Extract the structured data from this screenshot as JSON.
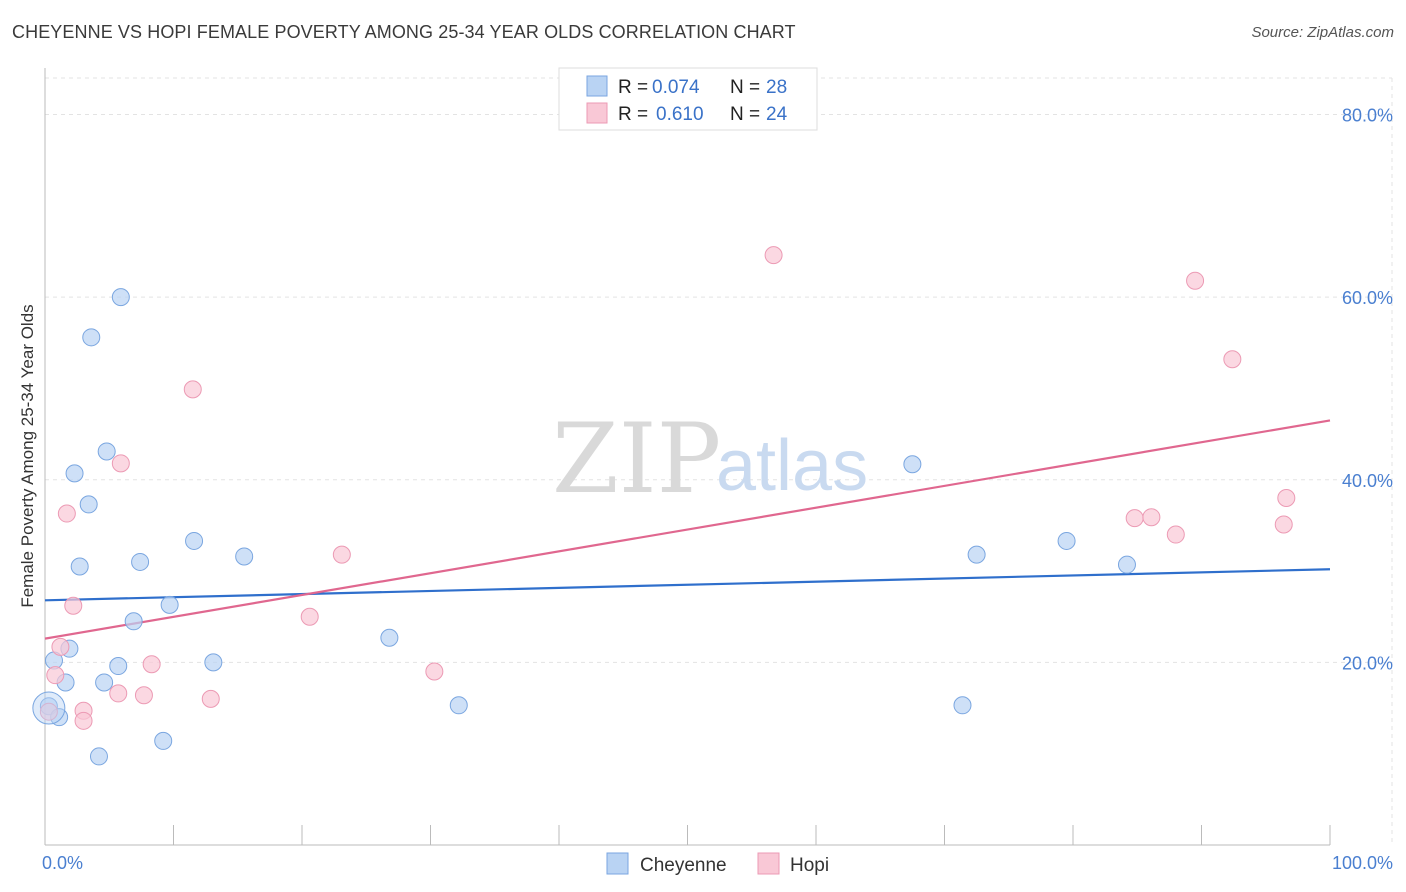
{
  "header": {
    "title": "CHEYENNE VS HOPI FEMALE POVERTY AMONG 25-34 YEAR OLDS CORRELATION CHART",
    "source": "Source: ZipAtlas.com"
  },
  "watermark": {
    "zip": "ZIP",
    "atlas": "atlas"
  },
  "colors": {
    "cheyenne_fill": "#b9d3f3",
    "cheyenne_stroke": "#7aa6e0",
    "cheyenne_line": "#2f6fcc",
    "hopi_fill": "#f9c8d6",
    "hopi_stroke": "#ec9ab4",
    "hopi_line": "#e0678f",
    "axis_text": "#4a7fd0"
  },
  "chart_data": {
    "type": "scatter",
    "title": "CHEYENNE VS HOPI FEMALE POVERTY AMONG 25-34 YEAR OLDS CORRELATION CHART",
    "xlabel": "",
    "ylabel": "Female Poverty Among 25-34 Year Olds",
    "xlim": [
      0,
      100
    ],
    "ylim": [
      0,
      84
    ],
    "x_tick_labels": [
      "0.0%",
      "100.0%"
    ],
    "y_ticks": [
      20,
      40,
      60,
      80
    ],
    "y_tick_labels": [
      "20.0%",
      "40.0%",
      "60.0%",
      "80.0%"
    ],
    "grid": true,
    "legend": {
      "position": "top-center",
      "entries": [
        {
          "series": "Cheyenne",
          "r_label": "R =",
          "r_value": "0.074",
          "n_label": "N =",
          "n_value": "28"
        },
        {
          "series": "Hopi",
          "r_label": "R =",
          "r_value": "0.610",
          "n_label": "N =",
          "n_value": "24"
        }
      ]
    },
    "series": [
      {
        "name": "Cheyenne",
        "points": [
          [
            0.3,
            15.2
          ],
          [
            0.7,
            20.2
          ],
          [
            1.1,
            14.0
          ],
          [
            1.6,
            17.8
          ],
          [
            1.9,
            21.5
          ],
          [
            2.3,
            40.7
          ],
          [
            2.7,
            30.5
          ],
          [
            3.4,
            37.3
          ],
          [
            3.6,
            55.6
          ],
          [
            4.6,
            17.8
          ],
          [
            4.8,
            43.1
          ],
          [
            5.7,
            19.6
          ],
          [
            5.9,
            60.0
          ],
          [
            6.9,
            24.5
          ],
          [
            7.4,
            31.0
          ],
          [
            9.2,
            11.4
          ],
          [
            9.7,
            26.3
          ],
          [
            11.6,
            33.3
          ],
          [
            13.1,
            20.0
          ],
          [
            15.5,
            31.6
          ],
          [
            26.8,
            22.7
          ],
          [
            32.2,
            15.3
          ],
          [
            4.2,
            9.7
          ],
          [
            67.5,
            41.7
          ],
          [
            71.4,
            15.3
          ],
          [
            72.5,
            31.8
          ],
          [
            79.5,
            33.3
          ],
          [
            84.2,
            30.7
          ]
        ],
        "trend": {
          "x": [
            0,
            100
          ],
          "y": [
            26.8,
            30.2
          ]
        }
      },
      {
        "name": "Hopi",
        "points": [
          [
            0.3,
            14.6
          ],
          [
            0.8,
            18.6
          ],
          [
            1.2,
            21.7
          ],
          [
            1.7,
            36.3
          ],
          [
            2.2,
            26.2
          ],
          [
            3.0,
            14.7
          ],
          [
            3.0,
            13.6
          ],
          [
            5.7,
            16.6
          ],
          [
            5.9,
            41.8
          ],
          [
            7.7,
            16.4
          ],
          [
            8.3,
            19.8
          ],
          [
            11.5,
            49.9
          ],
          [
            12.9,
            16.0
          ],
          [
            20.6,
            25.0
          ],
          [
            23.1,
            31.8
          ],
          [
            30.3,
            19.0
          ],
          [
            56.7,
            64.6
          ],
          [
            84.8,
            35.8
          ],
          [
            86.1,
            35.9
          ],
          [
            88.0,
            34.0
          ],
          [
            89.5,
            61.8
          ],
          [
            92.4,
            53.2
          ],
          [
            96.4,
            35.1
          ],
          [
            96.6,
            38.0
          ]
        ],
        "trend": {
          "x": [
            0,
            100
          ],
          "y": [
            22.6,
            46.5
          ]
        }
      }
    ]
  },
  "bottom_legend": [
    "Cheyenne",
    "Hopi"
  ]
}
